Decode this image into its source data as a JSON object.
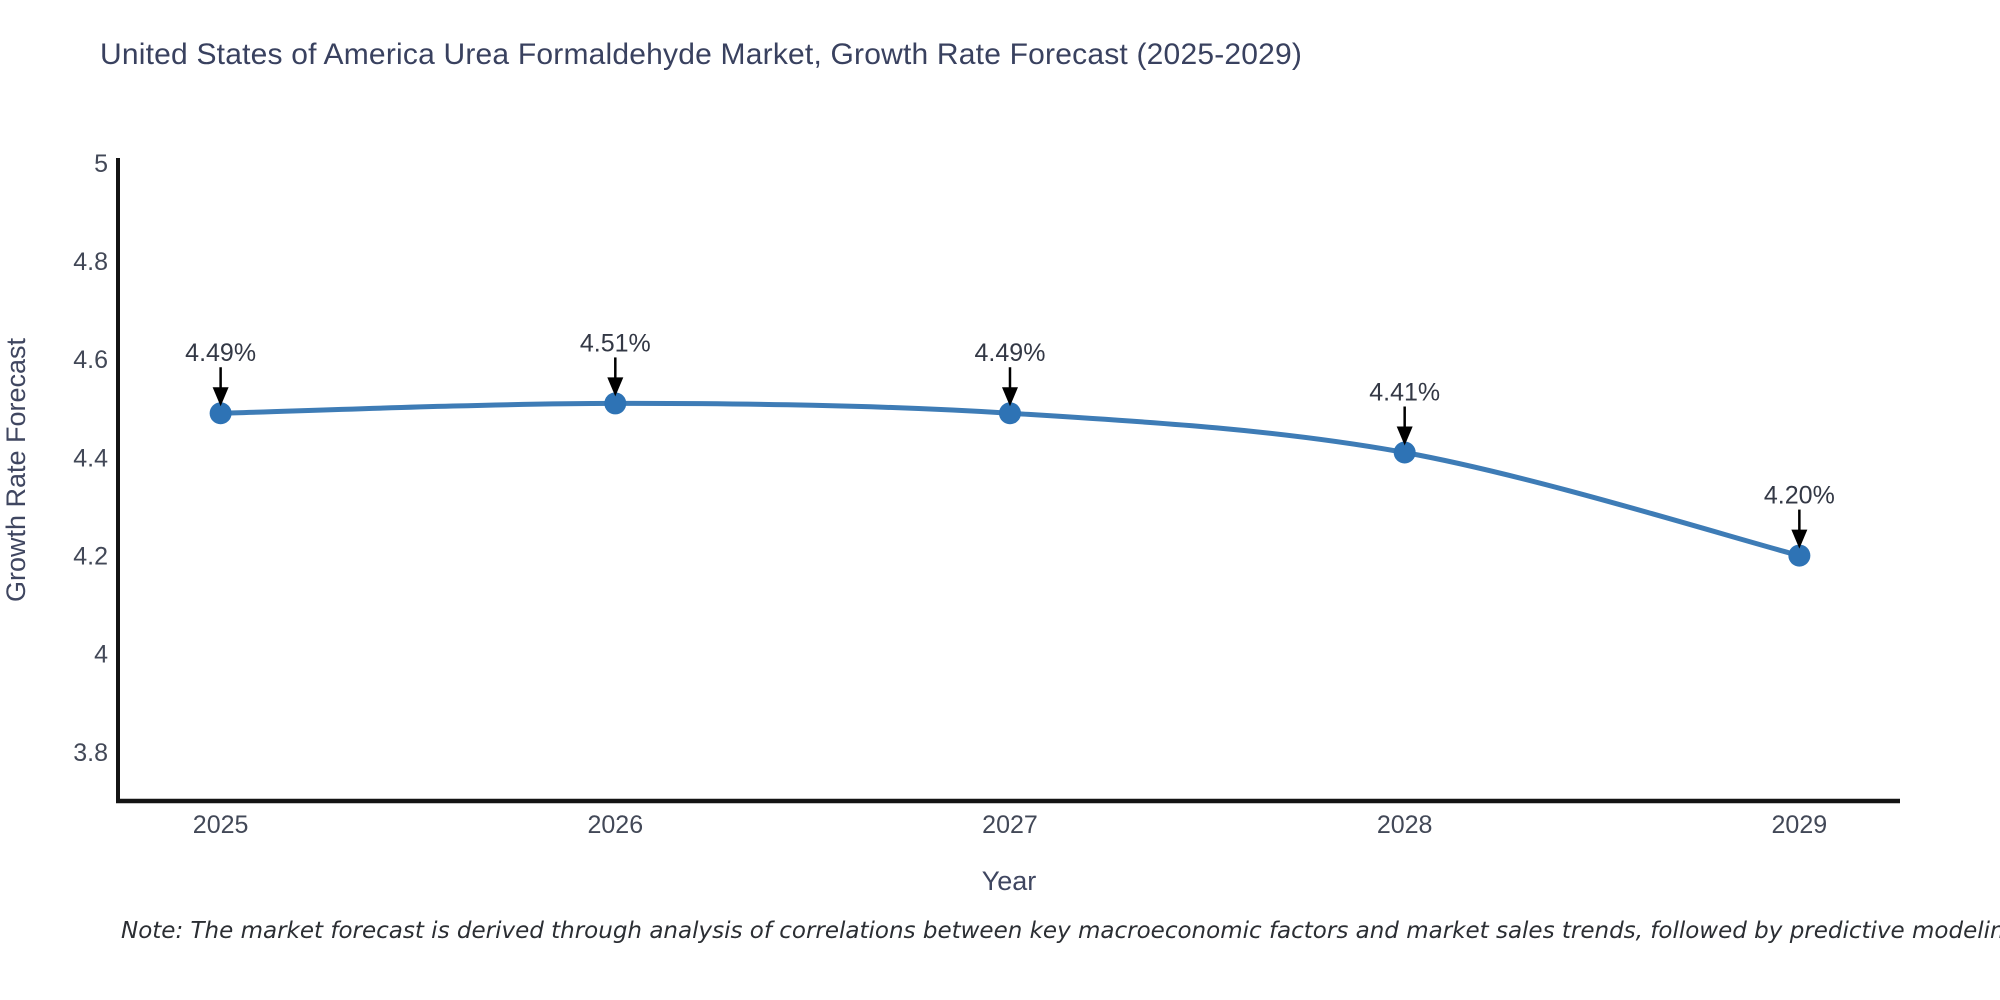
{
  "page": {
    "title": "United States of America Urea Formaldehyde Market, Growth Rate Forecast (2025-2029)",
    "note": "Note: The market forecast is derived through analysis of correlations between key macroeconomic factors and market sales trends, followed by predictive modeling to project future sales"
  },
  "chart_data": {
    "type": "line",
    "title": "United States of America Urea Formaldehyde Market, Growth Rate Forecast (2025-2029)",
    "xlabel": "Year",
    "ylabel": "Growth Rate Forecast",
    "categories": [
      2025,
      2026,
      2027,
      2028,
      2029
    ],
    "x_tick_labels": [
      "2025",
      "2026",
      "2027",
      "2028",
      "2029"
    ],
    "values": [
      4.49,
      4.51,
      4.49,
      4.41,
      4.2
    ],
    "point_labels": [
      "4.49%",
      "4.51%",
      "4.49%",
      "4.41%",
      "4.20%"
    ],
    "y_ticks": [
      5,
      4.8,
      4.6,
      4.4,
      4.2,
      4,
      3.8
    ],
    "y_tick_labels": [
      "5",
      "4.8",
      "4.6",
      "4.4",
      "4.2",
      "4",
      "3.8"
    ],
    "ylim": [
      3.7,
      5.01
    ],
    "xlim": [
      2024.74,
      2029.255
    ],
    "grid": false,
    "legend": "none",
    "line_shape": "spline",
    "marker_size": 11,
    "colors": {
      "line": "#3e7cb6",
      "marker": "#2e73b5",
      "axis": "#141414",
      "tick_text": "#424857",
      "axis_title_text": "#3f4660",
      "annotation_text": "#333845",
      "arrow": "#000000"
    }
  }
}
